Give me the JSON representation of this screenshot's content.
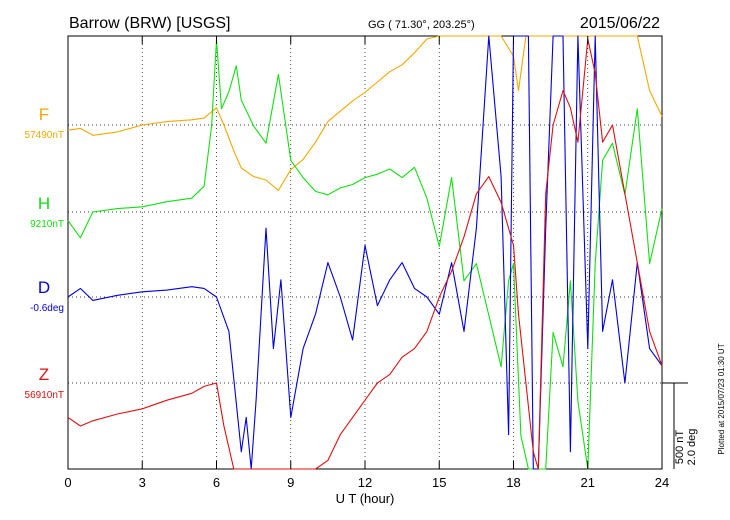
{
  "header": {
    "station": "Barrow (BRW)  [USGS]",
    "coords": "GG ( 71.30°, 203.25°)",
    "date": "2015/06/22"
  },
  "side_note": "Plotted at 2015/07/23 01:30 UT",
  "scale_note": "500 nT\n2.0 deg",
  "chart_data": {
    "type": "line",
    "title": "Barrow (BRW)  [USGS]",
    "xlabel": "U T (hour)",
    "xlim": [
      0,
      24
    ],
    "x_ticks": [
      "0",
      "3",
      "6",
      "9",
      "12",
      "15",
      "18",
      "21",
      "24"
    ],
    "grid": true,
    "scale": {
      "nT": 500,
      "deg": 2.0
    },
    "series": [
      {
        "name": "F",
        "baseline_label": "57490nT",
        "color": "#f5a800",
        "x": [
          0,
          0.5,
          1,
          2,
          3,
          4,
          5,
          5.5,
          6,
          6.3,
          6.7,
          7,
          7.5,
          8,
          8.5,
          9,
          9.5,
          10,
          10.5,
          11,
          11.5,
          12,
          12.5,
          13,
          13.5,
          14,
          14.5,
          15,
          15.5,
          16,
          16.5,
          17,
          17.5,
          18,
          18.2,
          18.5,
          18.8,
          19,
          19.3,
          19.6,
          20,
          20.3,
          20.6,
          21,
          21.3,
          21.6,
          22,
          22.5,
          23,
          23.5,
          24
        ],
        "y": [
          -30,
          -20,
          -60,
          -40,
          0,
          20,
          30,
          40,
          100,
          0,
          -150,
          -250,
          -300,
          -320,
          -380,
          -260,
          -200,
          -100,
          20,
          80,
          140,
          190,
          250,
          310,
          350,
          420,
          500,
          520,
          620,
          720,
          680,
          610,
          560,
          400,
          200,
          700,
          1200,
          1400,
          1600,
          1300,
          1200,
          800,
          1400,
          1600,
          1700,
          1500,
          1300,
          1200,
          1000,
          200,
          50
        ]
      },
      {
        "name": "H",
        "baseline_label": "9210nT",
        "color": "#11e011",
        "x": [
          0,
          0.5,
          1,
          2,
          3,
          4,
          5,
          5.5,
          5.8,
          6,
          6.2,
          6.5,
          6.8,
          7,
          7.5,
          8,
          8.5,
          9,
          9.5,
          10,
          10.5,
          11,
          11.5,
          12,
          12.5,
          13,
          13.5,
          14,
          14.5,
          15,
          15.5,
          16,
          16.5,
          17,
          17.5,
          17.8,
          18,
          18.3,
          18.6,
          18.8,
          19,
          19.3,
          19.6,
          20,
          20.3,
          20.6,
          21,
          21.3,
          21.6,
          22,
          22.5,
          23,
          23.5,
          24
        ],
        "y": [
          -50,
          -150,
          0,
          20,
          30,
          60,
          80,
          150,
          500,
          1000,
          600,
          700,
          850,
          650,
          500,
          400,
          800,
          300,
          200,
          120,
          100,
          140,
          160,
          200,
          220,
          250,
          200,
          260,
          80,
          -200,
          200,
          -400,
          -300,
          -600,
          -900,
          -400,
          -300,
          -1300,
          -2200,
          -3200,
          -2400,
          -1800,
          -700,
          -900,
          -400,
          -1100,
          -1800,
          -300,
          300,
          400,
          100,
          600,
          -300,
          20
        ]
      },
      {
        "name": "D",
        "baseline_label": "-0.6deg",
        "color": "#0000dd",
        "x": [
          0,
          0.5,
          1,
          2,
          3,
          4,
          5,
          5.5,
          6,
          6.5,
          7,
          7.2,
          7.4,
          7.6,
          8,
          8.3,
          8.6,
          9,
          9.5,
          10,
          10.5,
          11,
          11.5,
          12,
          12.5,
          13,
          13.5,
          14,
          14.5,
          15,
          15.5,
          16,
          16.5,
          17,
          17.5,
          17.8,
          18,
          18.3,
          18.6,
          18.8,
          19,
          19.3,
          19.6,
          20,
          20.3,
          20.6,
          21,
          21.3,
          21.6,
          22,
          22.5,
          23,
          23.5,
          24
        ],
        "y": [
          0,
          50,
          -20,
          10,
          30,
          40,
          60,
          50,
          0,
          -200,
          -900,
          -700,
          -1200,
          -600,
          400,
          -300,
          100,
          -700,
          -300,
          -100,
          200,
          0,
          -250,
          300,
          -50,
          100,
          200,
          50,
          0,
          -100,
          200,
          -200,
          400,
          1800,
          700,
          -800,
          2900,
          3100,
          2600,
          -1200,
          -2800,
          400,
          2400,
          1700,
          -900,
          2200,
          -300,
          2200,
          -200,
          100,
          -500,
          200,
          -300,
          -400
        ]
      },
      {
        "name": "Z",
        "baseline_label": "56910nT",
        "color": "#e01010",
        "x": [
          0,
          0.5,
          1,
          2,
          3,
          4,
          5,
          5.5,
          6,
          6.3,
          6.7,
          7,
          7.5,
          8,
          8.5,
          9,
          9.5,
          10,
          10.5,
          11,
          11.5,
          12,
          12.5,
          13,
          13.5,
          14,
          14.5,
          15,
          15.5,
          16,
          16.5,
          17,
          17.5,
          18,
          18.2,
          18.5,
          18.8,
          19,
          19.3,
          19.6,
          20,
          20.3,
          20.6,
          21,
          21.3,
          21.6,
          22,
          22.5,
          23,
          23.5,
          24
        ],
        "y": [
          -200,
          -250,
          -220,
          -180,
          -150,
          -100,
          -60,
          -20,
          0,
          -250,
          -550,
          -800,
          -950,
          -900,
          -800,
          -750,
          -700,
          -600,
          -450,
          -300,
          -200,
          -100,
          0,
          50,
          150,
          200,
          300,
          500,
          650,
          850,
          1100,
          1200,
          1050,
          800,
          400,
          0,
          -400,
          -600,
          1100,
          1500,
          1700,
          1600,
          1400,
          2000,
          1800,
          1400,
          1500,
          1100,
          700,
          300,
          100
        ]
      }
    ]
  }
}
